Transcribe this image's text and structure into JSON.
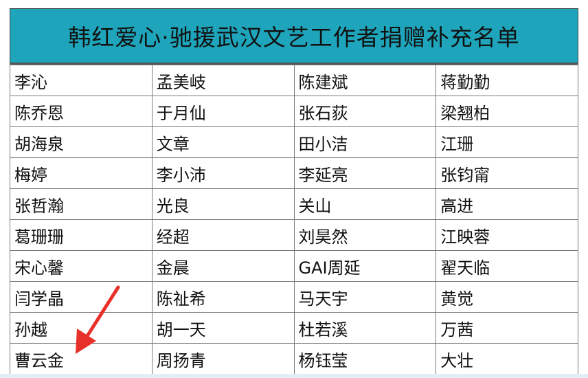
{
  "title": "韩红爱心·驰援武汉文艺工作者捐赠补充名单",
  "rows": [
    [
      "李沁",
      "孟美岐",
      "陈建斌",
      "蒋勤勤"
    ],
    [
      "陈乔恩",
      "于月仙",
      "张石荻",
      "梁翘柏"
    ],
    [
      "胡海泉",
      "文章",
      "田小洁",
      "江珊"
    ],
    [
      "梅婷",
      "李小沛",
      "李延亮",
      "张钧甯"
    ],
    [
      "张哲瀚",
      "光良",
      "关山",
      "高进"
    ],
    [
      "葛珊珊",
      "经超",
      "刘昊然",
      "江映蓉"
    ],
    [
      "宋心馨",
      "金晨",
      "GAI周延",
      "翟天临"
    ],
    [
      "闫学晶",
      "陈祉希",
      "马天宇",
      "黄觉"
    ],
    [
      "孙越",
      "胡一天",
      "杜若溪",
      "万茜"
    ],
    [
      "曹云金",
      "周扬青",
      "杨钰莹",
      "大壮"
    ]
  ],
  "colors": {
    "header": "#1ea5bb",
    "arrow": "#e8302a"
  },
  "annotation": {
    "icon": "red-arrow-icon",
    "points_to": "曹云金"
  }
}
